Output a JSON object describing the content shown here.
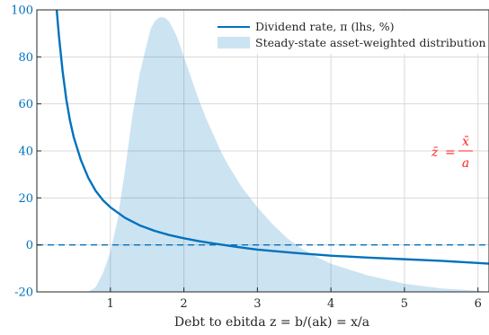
{
  "chart_data": {
    "type": "line",
    "xlabel": "Debt to ebitda z = b/(ak) = x/a",
    "xlim": [
      0,
      6.15
    ],
    "ylim": [
      -20,
      100
    ],
    "x_ticks": [
      1,
      2,
      3,
      4,
      5,
      6
    ],
    "y_ticks": [
      -20,
      0,
      20,
      40,
      60,
      80,
      100
    ],
    "grid": true,
    "legend_position": "top-right",
    "series": [
      {
        "name": "Dividend rate, π (lhs, %)",
        "kind": "line",
        "color": "#0072BD",
        "x": [
          0.27,
          0.3,
          0.35,
          0.4,
          0.45,
          0.5,
          0.6,
          0.7,
          0.8,
          0.9,
          1.0,
          1.2,
          1.4,
          1.6,
          1.8,
          2.0,
          2.2,
          2.4,
          2.6,
          2.8,
          3.0,
          3.5,
          4.0,
          4.5,
          5.0,
          5.5,
          6.0,
          6.15
        ],
        "values": [
          100,
          89,
          74,
          62,
          53,
          46,
          36,
          28.5,
          23,
          19,
          16,
          11.5,
          8.3,
          6.0,
          4.2,
          2.8,
          1.6,
          0.6,
          -0.3,
          -1.2,
          -2.0,
          -3.4,
          -4.6,
          -5.4,
          -6.1,
          -6.8,
          -7.7,
          -8.0
        ]
      },
      {
        "name": "Steady-state asset-weighted distribution f̂",
        "kind": "area",
        "color": "#0072BD",
        "x": [
          0.7,
          0.8,
          0.9,
          1.0,
          1.1,
          1.2,
          1.3,
          1.4,
          1.5,
          1.55,
          1.6,
          1.65,
          1.7,
          1.75,
          1.8,
          1.85,
          1.9,
          2.0,
          2.1,
          2.2,
          2.3,
          2.4,
          2.5,
          2.6,
          2.7,
          2.8,
          3.0,
          3.2,
          3.4,
          3.6,
          3.8,
          4.0,
          4.5,
          5.0,
          5.5,
          6.0,
          6.15
        ],
        "values": [
          -20,
          -18,
          -12,
          -3,
          11,
          32,
          55,
          73,
          86,
          92,
          95,
          96.5,
          97,
          96.5,
          95,
          92,
          89,
          80,
          71,
          62,
          54,
          47,
          40,
          34,
          29,
          24,
          16,
          9,
          3,
          -1.5,
          -5,
          -8,
          -13,
          -16.5,
          -18.5,
          -19.5,
          -20
        ]
      },
      {
        "name": "",
        "kind": "hline",
        "color": "#0072BD",
        "style": "dashed",
        "y": 0
      }
    ],
    "annotations": [
      {
        "text_lhs": "z̄",
        "text_eq": "=",
        "numerator": "x̄",
        "denominator": "a",
        "color": "#ff2222",
        "position": "right",
        "y_value": 40
      }
    ]
  }
}
